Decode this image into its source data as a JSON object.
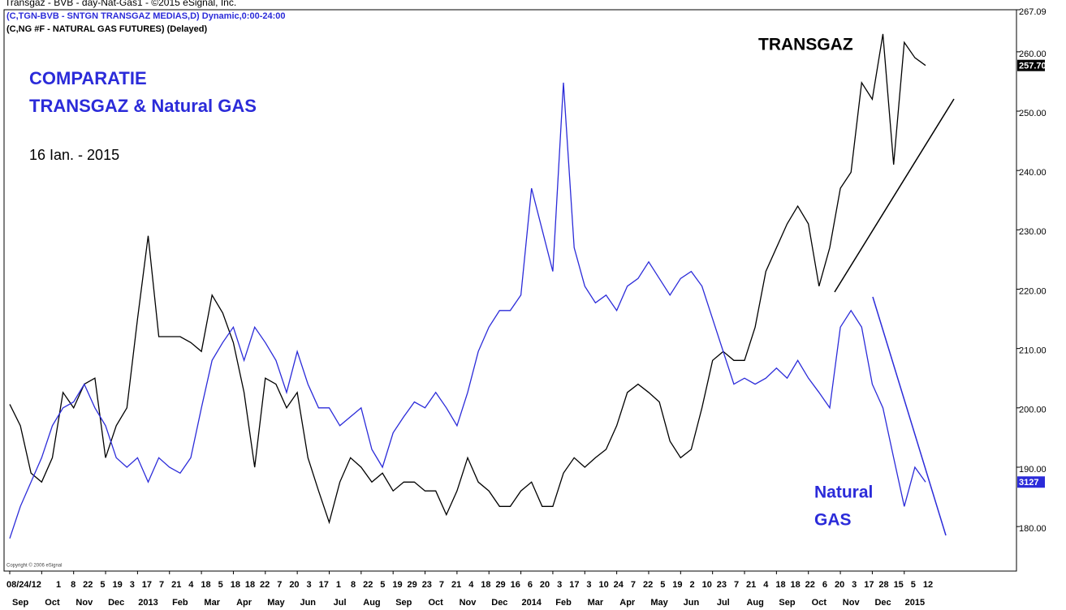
{
  "chart_data": {
    "type": "line",
    "title": "Transgaz - BVB - day-Nat-Gas1 - ©2015 eSignal, Inc.",
    "legend": [
      "(C,TGN-BVB - SNTGN TRANSGAZ MEDIAS,D) Dynamic,0:00-24:00",
      "(C,NG #F - NATURAL GAS FUTURES) (Delayed)"
    ],
    "annotations": [
      "COMPARATIE",
      "TRANSGAZ & Natural GAS",
      "16 Ian. - 2015",
      "TRANSGAZ",
      "Natural",
      "GAS",
      "Copyright © 2006 eSignal"
    ],
    "day_labels": [
      "08/24/12",
      "1",
      "8",
      "22",
      "5",
      "19",
      "3",
      "17",
      "7",
      "21",
      "4",
      "18",
      "5",
      "18",
      "18",
      "22",
      "7",
      "20",
      "3",
      "17",
      "1",
      "8",
      "22",
      "5",
      "19",
      "29",
      "23",
      "7",
      "21",
      "4",
      "18",
      "29",
      "16",
      "6",
      "20",
      "3",
      "17",
      "3",
      "10",
      "24",
      "7",
      "22",
      "5",
      "19",
      "2",
      "10",
      "23",
      "7",
      "21",
      "4",
      "18",
      "18",
      "22",
      "6",
      "20",
      "3",
      "17",
      "28",
      "15",
      "5",
      "12"
    ],
    "categories": [
      null,
      "Sep",
      null,
      null,
      "Oct",
      null,
      null,
      "Nov",
      null,
      null,
      "Dec",
      null,
      null,
      "2013",
      null,
      null,
      "Feb",
      null,
      null,
      "Mar",
      null,
      null,
      "Apr",
      null,
      null,
      "May",
      null,
      null,
      "Jun",
      null,
      null,
      "Jul",
      null,
      null,
      "Aug",
      null,
      null,
      "Sep",
      null,
      null,
      "Oct",
      null,
      null,
      "Nov",
      null,
      null,
      "Dec",
      null,
      null,
      "2014",
      null,
      null,
      "Feb",
      null,
      null,
      "Mar",
      null,
      null,
      "Apr",
      null,
      null,
      "May",
      null,
      null,
      "Jun",
      null,
      null,
      "Jul",
      null,
      null,
      "Aug",
      null,
      null,
      "Sep",
      null,
      null,
      "Oct",
      null,
      null,
      "Nov",
      null,
      null,
      "Dec",
      null,
      null,
      "2015",
      null
    ],
    "series": [
      {
        "name": "TRANSGAZ",
        "color": "#000000",
        "last_label": "257.70",
        "values": [
          200.6,
          197,
          189,
          187.5,
          191.6,
          202.6,
          200,
          204,
          205,
          191.6,
          197,
          200,
          215,
          229,
          212,
          212,
          212,
          211,
          209.5,
          219,
          216,
          211,
          202.6,
          190,
          205,
          204,
          200,
          202.6,
          191.6,
          186,
          180.7,
          187.5,
          191.6,
          190,
          187.5,
          189,
          186,
          187.5,
          187.5,
          186,
          186,
          182,
          186,
          191.6,
          187.5,
          186,
          183.4,
          183.4,
          186,
          187.5,
          183.4,
          183.4,
          189,
          191.6,
          190,
          191.6,
          193,
          197,
          202.6,
          204,
          202.6,
          201,
          194.4,
          191.6,
          193,
          200,
          208,
          209.5,
          208,
          208,
          213.6,
          223,
          227,
          231,
          234,
          231,
          220.5,
          227,
          237,
          239.7,
          254.8,
          252,
          263,
          241,
          261.6,
          259,
          257.7
        ]
      },
      {
        "name": "Natural GAS",
        "color": "#2b2bd9",
        "last_label": "3127",
        "values": [
          178,
          183.4,
          187.5,
          191.6,
          197,
          200,
          201,
          204,
          200,
          197,
          191.6,
          190,
          191.6,
          187.5,
          191.6,
          190,
          189,
          191.6,
          200,
          208,
          211,
          213.6,
          208,
          213.6,
          211,
          208,
          202.6,
          209.5,
          204,
          200,
          200,
          197,
          198.5,
          200,
          193,
          190,
          195.8,
          198.5,
          201,
          200,
          202.6,
          200,
          197,
          202.6,
          209.5,
          213.6,
          216.4,
          216.4,
          219,
          237,
          230,
          223,
          254.8,
          227,
          220.5,
          217.7,
          219,
          216.4,
          220.5,
          221.8,
          224.6,
          221.8,
          219,
          221.8,
          223,
          220.5,
          215,
          209.5,
          204,
          205,
          204,
          205,
          206.7,
          205,
          208,
          205,
          202.6,
          200,
          213.6,
          216.4,
          213.6,
          204,
          200,
          191.6,
          183.4,
          190,
          187.5
        ]
      }
    ],
    "ylim": [
      172.5,
      267.09
    ],
    "yticks": [
      {
        "value": 180,
        "label": "180.00"
      },
      {
        "value": 190,
        "label": "190.00"
      },
      {
        "value": 200,
        "label": "200.00"
      },
      {
        "value": 210,
        "label": "210.00"
      },
      {
        "value": 220,
        "label": "220.00"
      },
      {
        "value": 230,
        "label": "230.00"
      },
      {
        "value": 240,
        "label": "240.00"
      },
      {
        "value": 250,
        "label": "250.00"
      },
      {
        "value": 260,
        "label": "260.00"
      },
      267.09
    ],
    "grid": false
  }
}
